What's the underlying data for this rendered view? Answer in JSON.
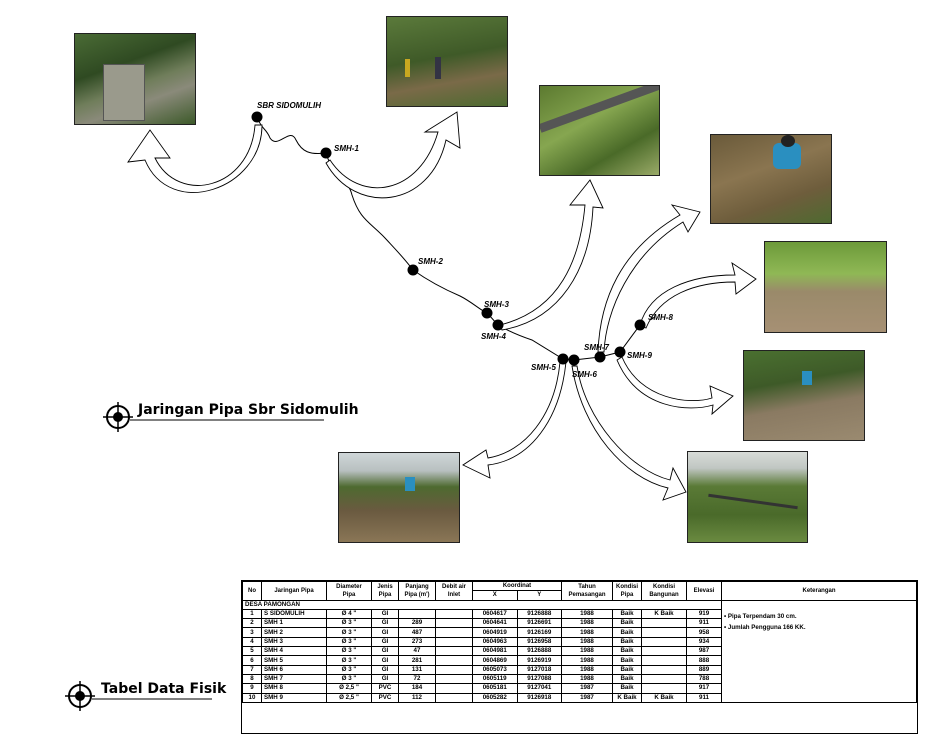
{
  "map_title": "Jaringan Pipa Sbr Sidomulih",
  "table_title": "Tabel Data Fisik",
  "nodes": [
    {
      "label": "SBR SIDOMULIH"
    },
    {
      "label": "SMH-1"
    },
    {
      "label": "SMH-2"
    },
    {
      "label": "SMH-3"
    },
    {
      "label": "SMH-4"
    },
    {
      "label": "SMH-5"
    },
    {
      "label": "SMH-6"
    },
    {
      "label": "SMH-7"
    },
    {
      "label": "SMH-8"
    },
    {
      "label": "SMH-9"
    }
  ],
  "table": {
    "headers": {
      "no": "No",
      "jaringan": "Jaringan Pipa",
      "diameter": "Diameter Pipa",
      "jenis": "Jenis Pipa",
      "panjang": "Panjang Pipa (m')",
      "debit": "Debit air Inlet",
      "koordinat": "Koordinat",
      "x": "X",
      "y": "Y",
      "tahun": "Tahun Pemasangan",
      "kondisi_pipa": "Kondisi Pipa",
      "kondisi_bangunan": "Kondisi Bangunan",
      "elevasi": "Elevasi",
      "keterangan": "Keterangan"
    },
    "section": "DESA PAMONGAN",
    "rows": [
      [
        "1",
        "S SIDOMULIH",
        "Ø 4 \"",
        "GI",
        "",
        "",
        "0604617",
        "9126888",
        "1988",
        "Baik",
        "K Baik",
        "919"
      ],
      [
        "2",
        "SMH 1",
        "Ø 3 \"",
        "GI",
        "289",
        "",
        "0604641",
        "9126691",
        "1988",
        "Baik",
        "",
        "911"
      ],
      [
        "3",
        "SMH 2",
        "Ø 3 \"",
        "GI",
        "487",
        "",
        "0604919",
        "9126169",
        "1988",
        "Baik",
        "",
        "958"
      ],
      [
        "4",
        "SMH 3",
        "Ø 3 \"",
        "GI",
        "273",
        "",
        "0604963",
        "9126958",
        "1988",
        "Baik",
        "",
        "934"
      ],
      [
        "5",
        "SMH 4",
        "Ø 3 \"",
        "GI",
        "47",
        "",
        "0604981",
        "9126888",
        "1988",
        "Baik",
        "",
        "987"
      ],
      [
        "6",
        "SMH 5",
        "Ø 3 \"",
        "GI",
        "281",
        "",
        "0604869",
        "9126919",
        "1988",
        "Baik",
        "",
        "888"
      ],
      [
        "7",
        "SMH 6",
        "Ø 3 \"",
        "GI",
        "131",
        "",
        "0605073",
        "9127018",
        "1988",
        "Baik",
        "",
        "889"
      ],
      [
        "8",
        "SMH 7",
        "Ø 3 \"",
        "GI",
        "72",
        "",
        "0605119",
        "9127088",
        "1988",
        "Baik",
        "",
        "788"
      ],
      [
        "9",
        "SMH 8",
        "Ø 2,5 \"",
        "PVC",
        "184",
        "",
        "0605181",
        "9127041",
        "1987",
        "Baik",
        "",
        "917"
      ],
      [
        "10",
        "SMH 9",
        "Ø 2,5 \"",
        "PVC",
        "112",
        "",
        "0605282",
        "9126918",
        "1987",
        "K Baik",
        "K Baik",
        "911"
      ]
    ],
    "notes": [
      "•  Pipa Terpendam 30 cm.",
      "•  Jumlah Pengguna 166 KK."
    ]
  }
}
